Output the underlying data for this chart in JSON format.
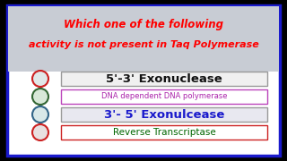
{
  "title_line1": "Which one of the following",
  "title_line2": "activity is not present in Taq Polymerase",
  "title_color": "#ff0000",
  "title_bg": "#c8ccd4",
  "bg_color": "#ffffff",
  "border_color": "#1a1acc",
  "black_bg": "#000000",
  "options": [
    {
      "label": "5'-3' Exonuclease",
      "text_color": "#111111",
      "text_size": 9.5,
      "box_edge_color": "#999999",
      "box_face_color": "#f0f0f0",
      "circle_fill": "#e0e8e8",
      "circle_edge": "#cc2222",
      "bold": true
    },
    {
      "label": "DNA dependent DNA polymerase",
      "text_color": "#aa22aa",
      "text_size": 6.0,
      "box_edge_color": "#bb44bb",
      "box_face_color": "#ffffff",
      "circle_fill": "#d8e8d8",
      "circle_edge": "#336633",
      "bold": false
    },
    {
      "label": "3'- 5' Exonulcease",
      "text_color": "#1a1acc",
      "text_size": 9.5,
      "box_edge_color": "#999999",
      "box_face_color": "#e8e8f0",
      "circle_fill": "#d8e8e8",
      "circle_edge": "#336688",
      "bold": true
    },
    {
      "label": "Reverse Transcriptase",
      "text_color": "#006600",
      "text_size": 7.5,
      "box_edge_color": "#cc2222",
      "box_face_color": "#ffffff",
      "circle_fill": "#e8e0e0",
      "circle_edge": "#cc2222",
      "bold": false
    }
  ]
}
